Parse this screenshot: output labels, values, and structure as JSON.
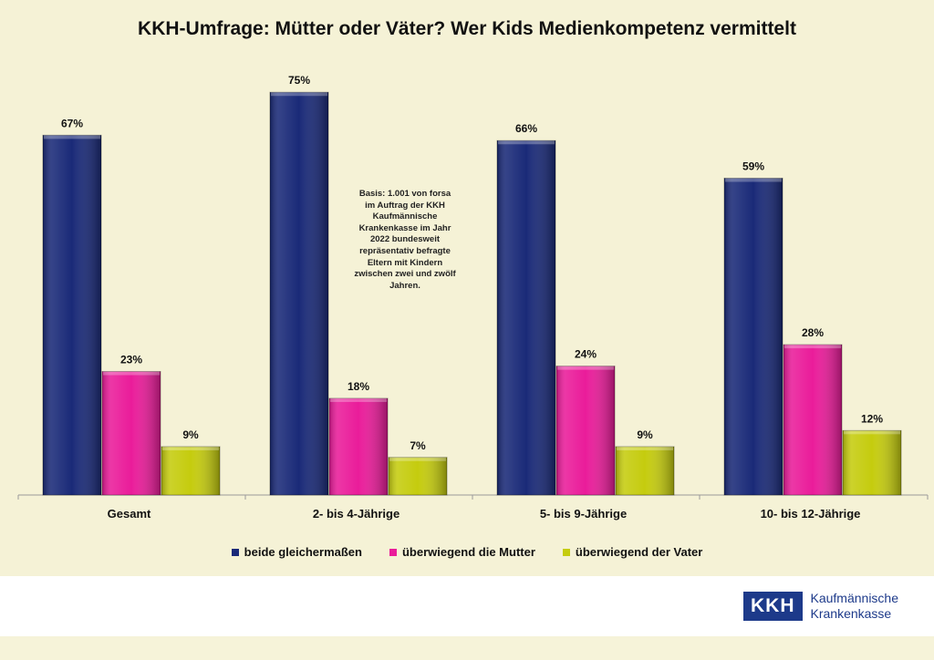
{
  "logo": {
    "abbrev": "KKH",
    "line1": "Kaufmännische",
    "line2": "Krankenkasse"
  },
  "chart_data": {
    "type": "bar",
    "title": "KKH-Umfrage: Mütter oder Väter? Wer Kids Medienkompetenz vermittelt",
    "categories": [
      "Gesamt",
      "2- bis 4-Jährige",
      "5- bis 9-Jährige",
      "10- bis 12-Jährige"
    ],
    "series": [
      {
        "name": "beide gleichermaßen",
        "values": [
          67,
          75,
          66,
          59
        ],
        "labels": [
          "67%",
          "75%",
          "66%",
          "59%"
        ],
        "color": "#1a2a78"
      },
      {
        "name": "überwiegend die Mutter",
        "values": [
          23,
          18,
          24,
          28
        ],
        "labels": [
          "23%",
          "18%",
          "24%",
          "28%"
        ],
        "color": "#ea1c9a"
      },
      {
        "name": "überwiegend der Vater",
        "values": [
          9,
          7,
          9,
          12
        ],
        "labels": [
          "9%",
          "7%",
          "9%",
          "12%"
        ],
        "color": "#c5cc0e"
      }
    ],
    "ylim": [
      0,
      82
    ],
    "xlabel": "",
    "ylabel": "",
    "legend_position": "bottom",
    "annotation": "Basis: 1.001 von forsa im Auftrag der KKH Kaufmännische Krankenkasse im Jahr 2022 bundesweit repräsentativ befragte Eltern mit Kindern zwischen zwei und zwölf Jahren."
  }
}
